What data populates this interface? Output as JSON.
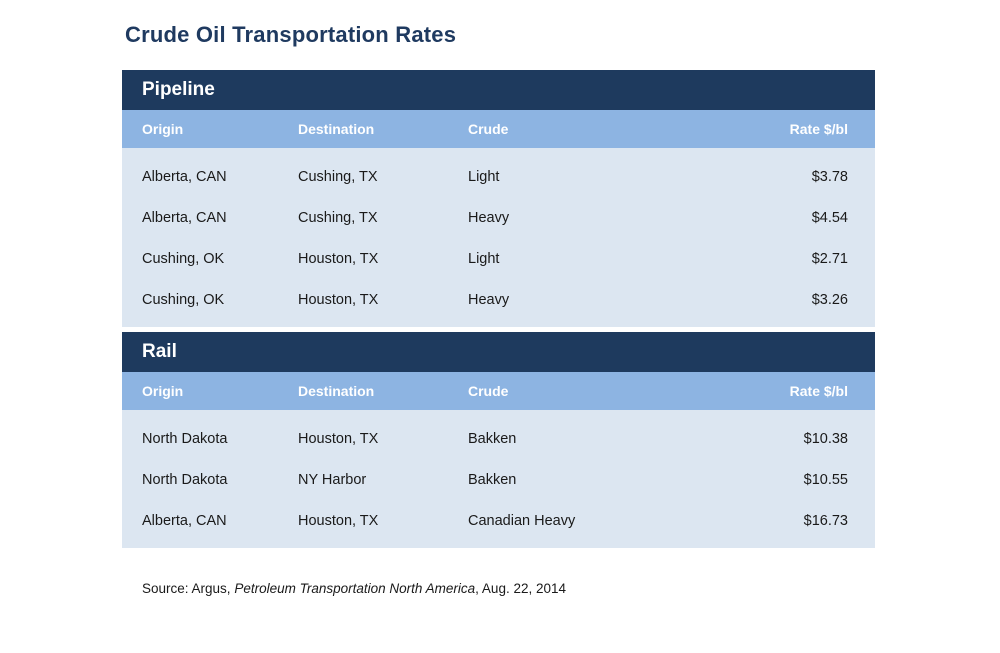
{
  "page": {
    "title": "Crude Oil Transportation Rates",
    "source": {
      "prefix": "Source: Argus, ",
      "publication": "Petroleum Transportation North America",
      "suffix": ", Aug. 22, 2014"
    }
  },
  "colors": {
    "navy_header": "#1e3a5e",
    "column_header_blue": "#8db4e2",
    "body_blue": "#dce6f1",
    "title_text": "#1f3a60",
    "header_text": "#ffffff",
    "row_text": "#1a1a1a"
  },
  "columns": [
    "Origin",
    "Destination",
    "Crude",
    "Rate $/bl"
  ],
  "sections": [
    {
      "name": "Pipeline",
      "rows": [
        {
          "origin": "Alberta, CAN",
          "destination": "Cushing, TX",
          "crude": "Light",
          "rate": "$3.78"
        },
        {
          "origin": "Alberta, CAN",
          "destination": "Cushing, TX",
          "crude": "Heavy",
          "rate": "$4.54"
        },
        {
          "origin": "Cushing, OK",
          "destination": "Houston, TX",
          "crude": "Light",
          "rate": "$2.71"
        },
        {
          "origin": "Cushing, OK",
          "destination": "Houston, TX",
          "crude": "Heavy",
          "rate": "$3.26"
        }
      ]
    },
    {
      "name": "Rail",
      "rows": [
        {
          "origin": "North Dakota",
          "destination": "Houston, TX",
          "crude": "Bakken",
          "rate": "$10.38"
        },
        {
          "origin": "North Dakota",
          "destination": "NY Harbor",
          "crude": "Bakken",
          "rate": "$10.55"
        },
        {
          "origin": "Alberta, CAN",
          "destination": "Houston, TX",
          "crude": "Canadian Heavy",
          "rate": "$16.73"
        }
      ]
    }
  ],
  "chart_data": {
    "type": "table",
    "title": "Crude Oil Transportation Rates",
    "columns": [
      "Origin",
      "Destination",
      "Crude",
      "Rate $/bl"
    ],
    "sections": [
      {
        "name": "Pipeline",
        "rows": [
          [
            "Alberta, CAN",
            "Cushing, TX",
            "Light",
            3.78
          ],
          [
            "Alberta, CAN",
            "Cushing, TX",
            "Heavy",
            4.54
          ],
          [
            "Cushing, OK",
            "Houston, TX",
            "Light",
            2.71
          ],
          [
            "Cushing, OK",
            "Houston, TX",
            "Heavy",
            3.26
          ]
        ]
      },
      {
        "name": "Rail",
        "rows": [
          [
            "North Dakota",
            "Houston, TX",
            "Bakken",
            10.38
          ],
          [
            "North Dakota",
            "NY Harbor",
            "Bakken",
            10.55
          ],
          [
            "Alberta, CAN",
            "Houston, TX",
            "Canadian Heavy",
            16.73
          ]
        ]
      }
    ],
    "rate_unit": "$/bl",
    "source": "Source: Argus, Petroleum Transportation North America, Aug. 22, 2014",
    "layout": {
      "legend": "none",
      "grid": "off"
    }
  }
}
